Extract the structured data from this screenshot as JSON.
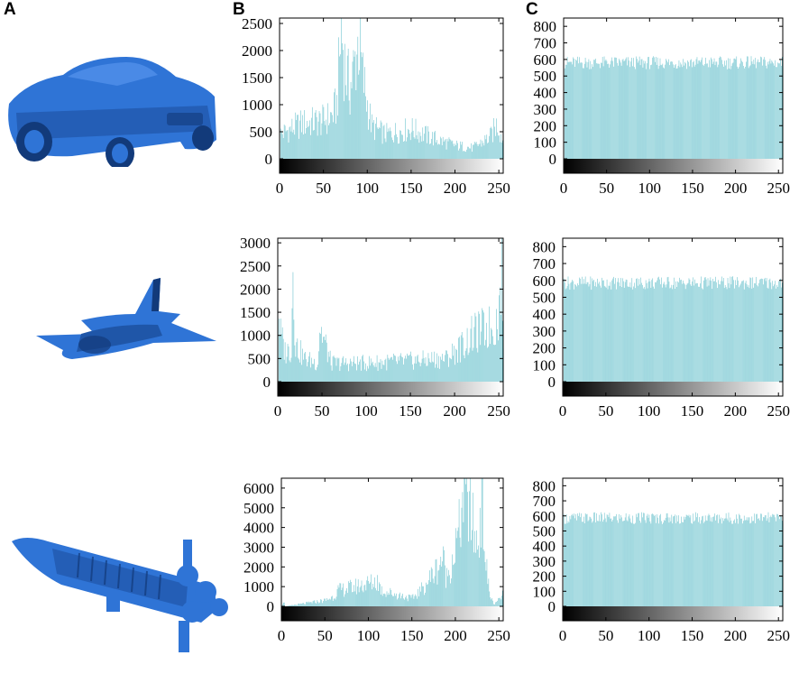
{
  "panels": {
    "a": "A",
    "b": "B",
    "c": "C"
  },
  "colors": {
    "bar": "#5cbcc8",
    "model": "#2f74d6",
    "model_dark": "#123a7a",
    "axis": "#000000"
  },
  "models": [
    {
      "name": "car-model-icon"
    },
    {
      "name": "airplane-model-icon"
    },
    {
      "name": "rocket-model-icon"
    }
  ],
  "chart_data": [
    {
      "type": "bar",
      "id": "car-original",
      "xlim": [
        0,
        255
      ],
      "ylim": [
        0,
        2600
      ],
      "xticks": [
        0,
        50,
        100,
        150,
        200,
        250
      ],
      "yticks": [
        0,
        500,
        1000,
        1500,
        2000,
        2500
      ],
      "x": [
        0,
        25,
        50,
        60,
        65,
        70,
        75,
        80,
        85,
        90,
        95,
        100,
        105,
        120,
        150,
        180,
        200,
        220,
        240,
        248,
        255
      ],
      "values": [
        450,
        650,
        700,
        800,
        1000,
        2400,
        1600,
        1300,
        1700,
        2200,
        1500,
        1000,
        600,
        450,
        550,
        350,
        250,
        200,
        400,
        650,
        300
      ]
    },
    {
      "type": "bar",
      "id": "car-encrypted",
      "xlim": [
        0,
        255
      ],
      "ylim": [
        0,
        850
      ],
      "xticks": [
        0,
        50,
        100,
        150,
        200,
        250
      ],
      "yticks": [
        0,
        100,
        200,
        300,
        400,
        500,
        600,
        700,
        800
      ],
      "x": [
        0,
        255
      ],
      "values": [
        580,
        580
      ]
    },
    {
      "type": "bar",
      "id": "plane-original",
      "xlim": [
        0,
        255
      ],
      "ylim": [
        0,
        3100
      ],
      "xticks": [
        0,
        50,
        100,
        150,
        200,
        250
      ],
      "yticks": [
        0,
        500,
        1000,
        1500,
        2000,
        2500,
        3000
      ],
      "x": [
        0,
        3,
        8,
        15,
        17,
        20,
        30,
        45,
        47,
        60,
        100,
        150,
        190,
        210,
        220,
        230,
        245,
        250,
        253,
        255
      ],
      "values": [
        1700,
        1000,
        650,
        700,
        2500,
        800,
        500,
        400,
        1200,
        400,
        400,
        450,
        500,
        800,
        1000,
        1100,
        1200,
        1500,
        3000,
        500
      ]
    },
    {
      "type": "bar",
      "id": "plane-encrypted",
      "xlim": [
        0,
        255
      ],
      "ylim": [
        0,
        850
      ],
      "xticks": [
        0,
        50,
        100,
        150,
        200,
        250
      ],
      "yticks": [
        0,
        100,
        200,
        300,
        400,
        500,
        600,
        700,
        800
      ],
      "x": [
        0,
        255
      ],
      "values": [
        585,
        585
      ]
    },
    {
      "type": "bar",
      "id": "rocket-original",
      "xlim": [
        0,
        255
      ],
      "ylim": [
        0,
        6500
      ],
      "xticks": [
        0,
        50,
        100,
        150,
        200,
        250
      ],
      "yticks": [
        0,
        1000,
        2000,
        3000,
        4000,
        5000,
        6000
      ],
      "x": [
        0,
        2,
        4,
        50,
        60,
        65,
        105,
        110,
        115,
        150,
        160,
        180,
        185,
        190,
        200,
        205,
        210,
        213,
        216,
        220,
        225,
        230,
        235,
        240,
        245,
        255
      ],
      "values": [
        0,
        300,
        0,
        300,
        500,
        800,
        1200,
        1300,
        800,
        400,
        800,
        2000,
        2500,
        1500,
        3000,
        4000,
        6200,
        5000,
        5500,
        4000,
        3000,
        5800,
        2000,
        500,
        100,
        600
      ]
    },
    {
      "type": "bar",
      "id": "rocket-encrypted",
      "xlim": [
        0,
        255
      ],
      "ylim": [
        0,
        850
      ],
      "xticks": [
        0,
        50,
        100,
        150,
        200,
        250
      ],
      "yticks": [
        0,
        100,
        200,
        300,
        400,
        500,
        600,
        700,
        800
      ],
      "x": [
        0,
        255
      ],
      "values": [
        585,
        585
      ]
    }
  ]
}
